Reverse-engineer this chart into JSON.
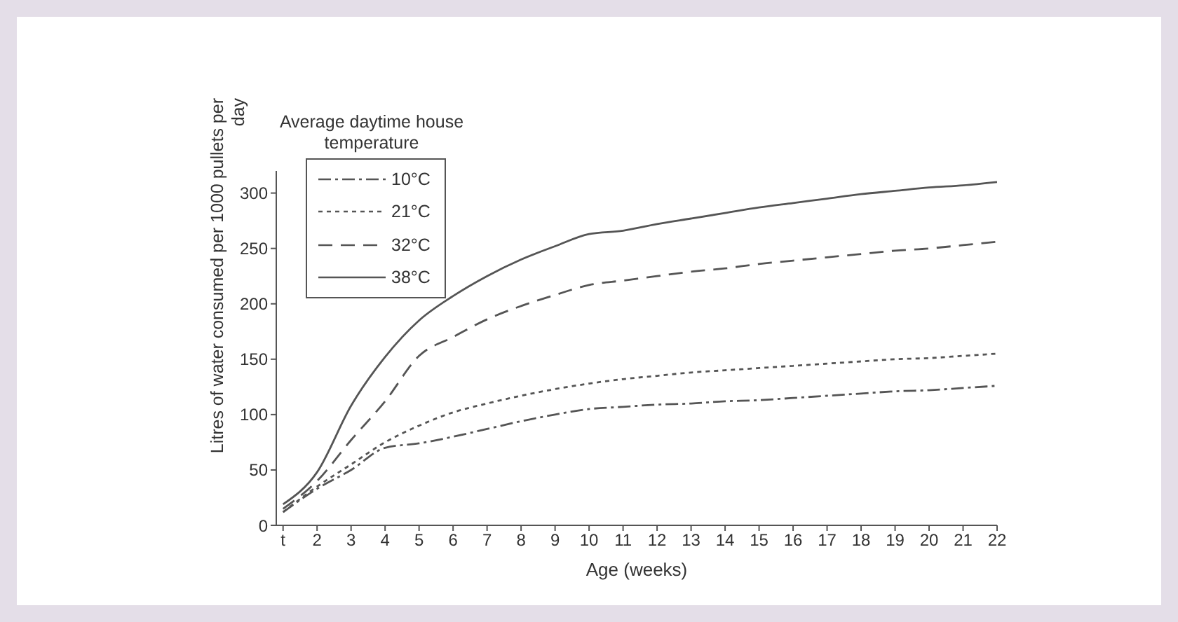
{
  "chart_data": {
    "type": "line",
    "xlabel": "Age (weeks)",
    "ylabel": "Litres of water consumed per 1000 pullets per day",
    "legend_title": "Average daytime house temperature",
    "legend": "top left",
    "grid": false,
    "marker": "none",
    "x": [
      1,
      2,
      3,
      4,
      5,
      6,
      7,
      8,
      9,
      10,
      11,
      12,
      13,
      14,
      15,
      16,
      17,
      18,
      19,
      20,
      21,
      22
    ],
    "xlim": [
      0.8,
      22
    ],
    "xticks": [
      {
        "value": 1,
        "label": "t"
      },
      2,
      3,
      4,
      5,
      6,
      7,
      8,
      9,
      10,
      11,
      12,
      13,
      14,
      15,
      16,
      17,
      18,
      19,
      20,
      21,
      22
    ],
    "ylim": [
      0,
      320
    ],
    "yticks": [
      0,
      50,
      100,
      150,
      200,
      250,
      300
    ],
    "series": [
      {
        "name": "10°C",
        "color": "#555555",
        "line_style": "dashdot",
        "values": [
          12,
          33,
          50,
          70,
          74,
          80,
          87,
          94,
          100,
          105,
          107,
          109,
          110,
          112,
          113,
          115,
          117,
          119,
          121,
          122,
          124,
          126
        ]
      },
      {
        "name": "21°C",
        "color": "#555555",
        "line_style": "dotted",
        "values": [
          12,
          35,
          55,
          75,
          90,
          102,
          110,
          117,
          123,
          128,
          132,
          135,
          138,
          140,
          142,
          144,
          146,
          148,
          150,
          151,
          153,
          155
        ]
      },
      {
        "name": "32°C",
        "color": "#555555",
        "line_style": "dashed",
        "values": [
          15,
          40,
          77,
          112,
          153,
          170,
          186,
          198,
          208,
          217,
          221,
          225,
          229,
          232,
          236,
          239,
          242,
          245,
          248,
          250,
          253,
          256
        ]
      },
      {
        "name": "38°C",
        "color": "#555555",
        "line_style": "solid",
        "values": [
          19,
          48,
          108,
          152,
          185,
          207,
          225,
          240,
          252,
          263,
          266,
          272,
          277,
          282,
          287,
          291,
          295,
          299,
          302,
          305,
          307,
          310
        ]
      }
    ]
  }
}
